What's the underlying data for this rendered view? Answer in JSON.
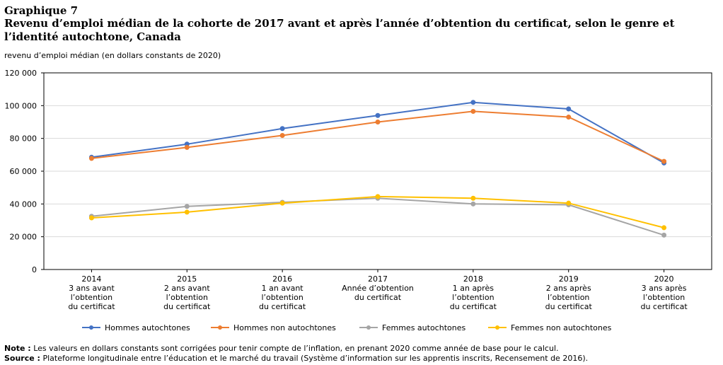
{
  "header": {
    "label": "Graphique 7",
    "title": "Revenu d’emploi médian de la cohorte de 2017 avant et après l’année d’obtention du certificat, selon le genre et l’identité autochtone, Canada"
  },
  "chart_data": {
    "type": "line",
    "ylabel": "revenu d’emploi médian (en dollars constants de 2020)",
    "ylim": [
      0,
      120000
    ],
    "yticks": [
      "0",
      "20 000",
      "40 000",
      "60 000",
      "80 000",
      "100 000",
      "120 000"
    ],
    "grid": true,
    "legend_position": "bottom",
    "categories": [
      [
        "2014",
        "3 ans avant",
        "l’obtention",
        "du certificat"
      ],
      [
        "2015",
        "2 ans avant",
        "l’obtention",
        "du certificat"
      ],
      [
        "2016",
        "1 an avant",
        "l’obtention",
        "du certificat"
      ],
      [
        "2017",
        "Année d’obtention",
        "du certificat"
      ],
      [
        "2018",
        "1 an après",
        "l’obtention",
        "du certificat"
      ],
      [
        "2019",
        "2 ans après",
        "l’obtention",
        "du certificat"
      ],
      [
        "2020",
        "3 ans après",
        "l’obtention",
        "du certificat"
      ]
    ],
    "series": [
      {
        "name": "Hommes autochtones",
        "color": "#4472c4",
        "values": [
          68500,
          76500,
          86000,
          94000,
          102000,
          98000,
          65000
        ]
      },
      {
        "name": "Hommes non autochtones",
        "color": "#ed7d31",
        "values": [
          67800,
          74500,
          81800,
          90000,
          96500,
          93000,
          66000
        ]
      },
      {
        "name": "Femmes autochtones",
        "color": "#a5a5a5",
        "values": [
          32500,
          38500,
          41000,
          43500,
          40000,
          39500,
          21000
        ]
      },
      {
        "name": "Femmes non autochtones",
        "color": "#ffc000",
        "values": [
          31500,
          35000,
          40500,
          44500,
          43500,
          40500,
          25500
        ]
      }
    ]
  },
  "notes": {
    "note_label": "Note :",
    "note_text": "Les valeurs en dollars constants sont corrigées pour tenir compte de l’inflation, en prenant 2020 comme année de base pour le calcul.",
    "source_label": "Source :",
    "source_text": "Plateforme longitudinale entre l’éducation et le marché du travail (Système d’information sur les apprentis inscrits, Recensement de 2016)."
  }
}
